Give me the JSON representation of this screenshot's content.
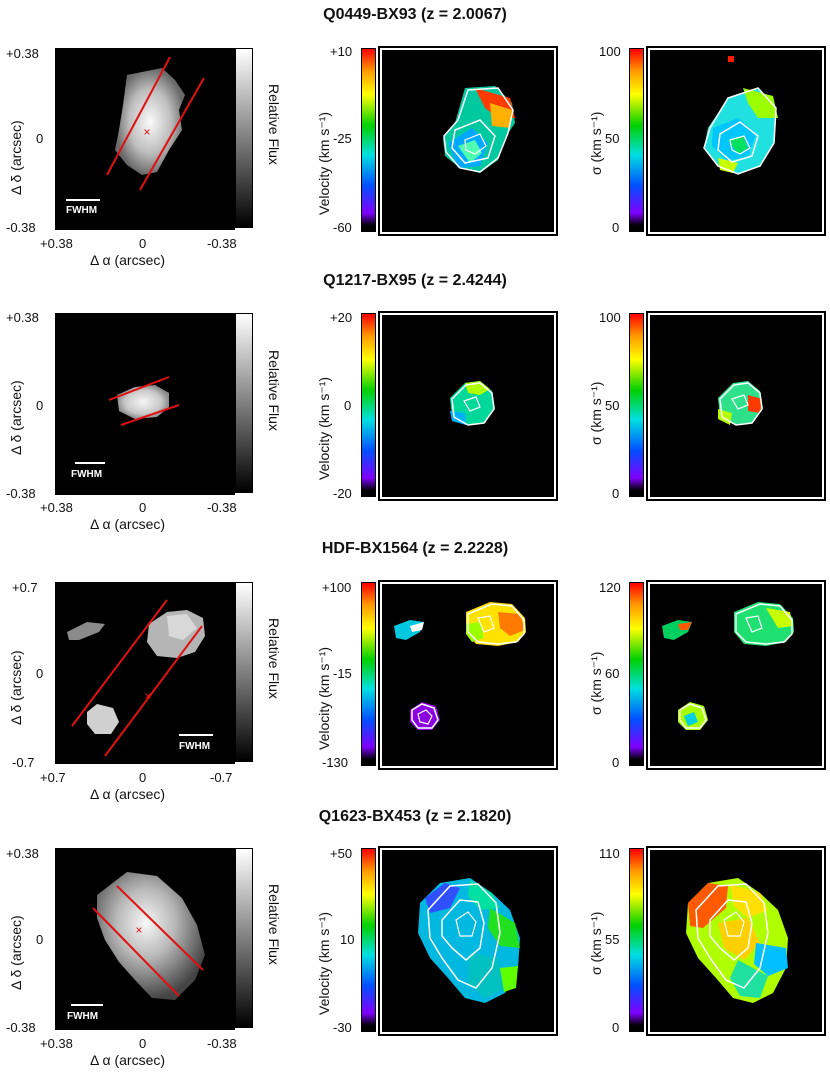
{
  "rows": [
    {
      "title": "Q0449-BX93 (z = 2.0067)",
      "flux": {
        "ytop": "+0.38",
        "ymid": "0",
        "ybot": "-0.38",
        "xleft": "+0.38",
        "xmid": "0",
        "xright": "-0.38",
        "ylabel": "Δ δ (arcsec)",
        "xlabel": "Δ α (arcsec)",
        "cbar_label": "Relative Flux",
        "fwhm": "FWHM"
      },
      "vel": {
        "top": "+10",
        "mid": "-25",
        "bot": "-60",
        "label": "Velocity (km s⁻¹)"
      },
      "sig": {
        "top": "100",
        "mid": "50",
        "bot": "0",
        "label": "σ (km s⁻¹)"
      }
    },
    {
      "title": "Q1217-BX95 (z = 2.4244)",
      "flux": {
        "ytop": "+0.38",
        "ymid": "0",
        "ybot": "-0.38",
        "xleft": "+0.38",
        "xmid": "0",
        "xright": "-0.38",
        "ylabel": "Δ δ (arcsec)",
        "xlabel": "Δ α (arcsec)",
        "cbar_label": "Relative Flux",
        "fwhm": "FWHM"
      },
      "vel": {
        "top": "+20",
        "mid": "0",
        "bot": "-20",
        "label": "Velocity (km s⁻¹)"
      },
      "sig": {
        "top": "100",
        "mid": "50",
        "bot": "0",
        "label": "σ (km s⁻¹)"
      }
    },
    {
      "title": "HDF-BX1564 (z = 2.2228)",
      "flux": {
        "ytop": "+0.7",
        "ymid": "0",
        "ybot": "-0.7",
        "xleft": "+0.7",
        "xmid": "0",
        "xright": "-0.7",
        "ylabel": "Δ δ (arcsec)",
        "xlabel": "Δ α (arcsec)",
        "cbar_label": "Relative Flux",
        "fwhm": "FWHM"
      },
      "vel": {
        "top": "+100",
        "mid": "-15",
        "bot": "-130",
        "label": "Velocity (km s⁻¹)"
      },
      "sig": {
        "top": "120",
        "mid": "60",
        "bot": "0",
        "label": "σ (km s⁻¹)"
      }
    },
    {
      "title": "Q1623-BX453 (z = 2.1820)",
      "flux": {
        "ytop": "+0.38",
        "ymid": "0",
        "ybot": "-0.38",
        "xleft": "+0.38",
        "xmid": "0",
        "xright": "-0.38",
        "ylabel": "Δ δ (arcsec)",
        "xlabel": "Δ α (arcsec)",
        "cbar_label": "Relative Flux",
        "fwhm": "FWHM"
      },
      "vel": {
        "top": "+50",
        "mid": "10",
        "bot": "-30",
        "label": "Velocity (km s⁻¹)"
      },
      "sig": {
        "top": "110",
        "mid": "55",
        "bot": "0",
        "label": "σ (km s⁻¹)"
      }
    }
  ],
  "colors": {
    "slit_line": "#e01010",
    "contour": "#ffffff",
    "background": "#000000"
  }
}
